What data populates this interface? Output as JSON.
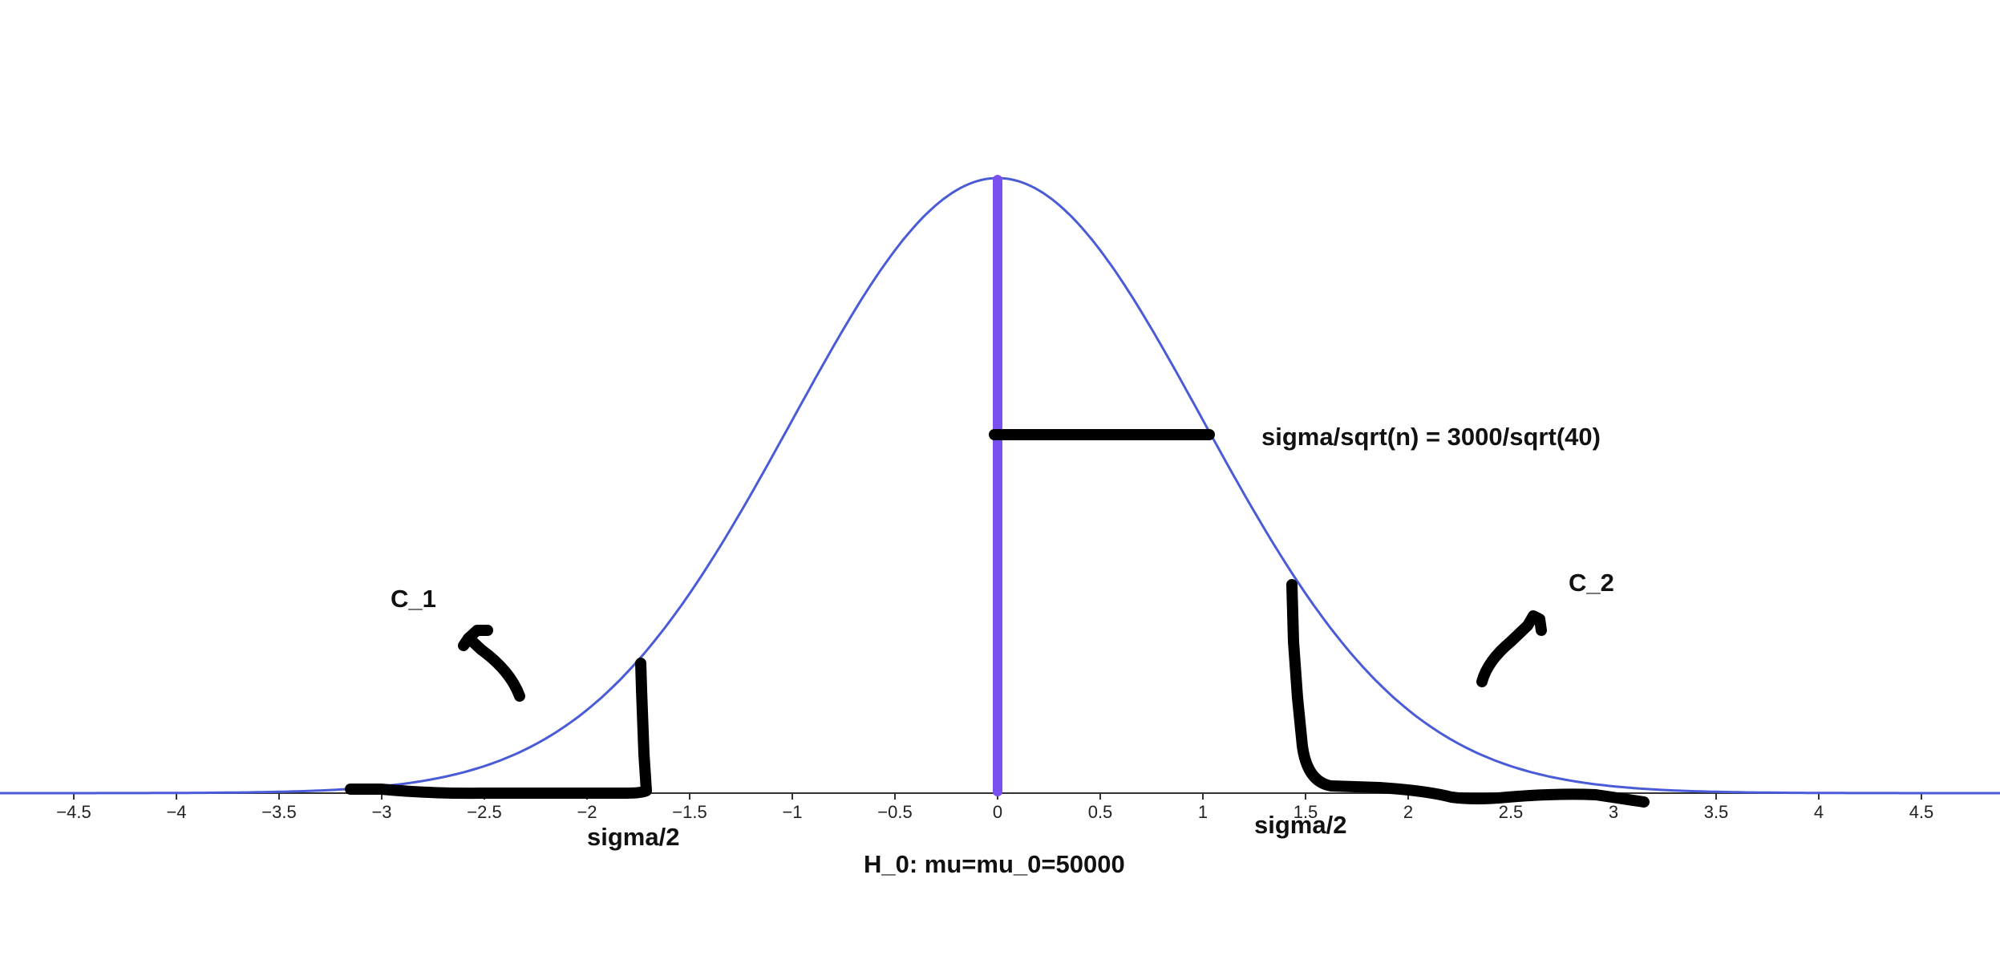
{
  "chart_data": {
    "type": "line",
    "title": "",
    "xlabel": "",
    "ylabel": "",
    "xlim": [
      -4.9,
      4.9
    ],
    "x_ticks": [
      -4.5,
      -4,
      -3.5,
      -3,
      -2.5,
      -2,
      -1.5,
      -1,
      -0.5,
      0,
      0.5,
      1,
      1.5,
      2,
      2.5,
      3,
      3.5,
      4,
      4.5
    ],
    "x_tick_labels": [
      "−4.5",
      "−4",
      "−3.5",
      "−3",
      "−2.5",
      "−2",
      "−1.5",
      "−1",
      "−0.5",
      "0",
      "0.5",
      "1",
      "1.5",
      "2",
      "2.5",
      "3",
      "3.5",
      "4",
      "4.5"
    ],
    "grid": false,
    "series": [
      {
        "kind": "normal-density",
        "mean": 0,
        "sd": 1,
        "color": "#4a5bd8"
      }
    ],
    "mean_line": {
      "x": 0,
      "color": "#7b50f0"
    },
    "critical_values": [
      -1.75,
      1.45
    ],
    "annotations": {
      "sd_label": "sigma/sqrt(n) = 3000/sqrt(40)",
      "c1_label": "C_1",
      "c2_label": "C_2",
      "left_tail_label": "sigma/2",
      "right_tail_label": "sigma/2",
      "hypothesis_label": "H_0: mu=mu_0=50000"
    }
  }
}
